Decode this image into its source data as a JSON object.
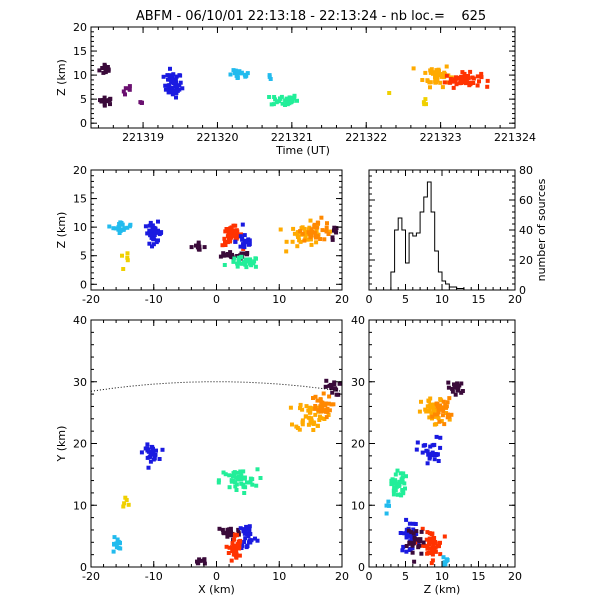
{
  "title": "ABFM - 06/10/01 22:13:18 - 22:13:24 - nb loc.=    625",
  "palette": {
    "dark": "#3a0a3a",
    "purple": "#6a1070",
    "blue": "#1a1ae0",
    "cyan": "#22bbee",
    "teal": "#22ee99",
    "yellow": "#f0d000",
    "orange_light": "#ffaa00",
    "orange": "#ff8800",
    "red": "#ff3300"
  },
  "chart_data": [
    {
      "id": "time-height",
      "type": "scatter",
      "xlabel": "Time (UT)",
      "ylabel": "Z (km)",
      "xlim": [
        221318.3,
        221324
      ],
      "ylim": [
        -1,
        20
      ],
      "xticks": [
        221319,
        221320,
        221321,
        221322,
        221323,
        221324
      ],
      "yticks": [
        0,
        5,
        10,
        15,
        20
      ],
      "clusters": [
        {
          "color": "dark",
          "cx": 221318.5,
          "cy": 11.3,
          "sx": 0.07,
          "sy": 1.0,
          "n": 14
        },
        {
          "color": "dark",
          "cx": 221318.5,
          "cy": 4.6,
          "sx": 0.08,
          "sy": 0.6,
          "n": 14
        },
        {
          "color": "purple",
          "cx": 221318.8,
          "cy": 6.8,
          "sx": 0.06,
          "sy": 1.0,
          "n": 6
        },
        {
          "color": "purple",
          "cx": 221319.0,
          "cy": 4.4,
          "sx": 0.03,
          "sy": 0.4,
          "n": 3
        },
        {
          "color": "blue",
          "cx": 221319.4,
          "cy": 8.0,
          "sx": 0.1,
          "sy": 2.2,
          "n": 45
        },
        {
          "color": "cyan",
          "cx": 221320.3,
          "cy": 10.0,
          "sx": 0.12,
          "sy": 0.8,
          "n": 18
        },
        {
          "color": "cyan",
          "cx": 221320.7,
          "cy": 9.5,
          "sx": 0.02,
          "sy": 0.6,
          "n": 3
        },
        {
          "color": "teal",
          "cx": 221320.9,
          "cy": 4.8,
          "sx": 0.15,
          "sy": 1.0,
          "n": 35
        },
        {
          "color": "yellow",
          "cx": 221322.3,
          "cy": 6.2,
          "sx": 0.02,
          "sy": 0.3,
          "n": 1
        },
        {
          "color": "yellow",
          "cx": 221322.8,
          "cy": 4.5,
          "sx": 0.04,
          "sy": 0.8,
          "n": 4
        },
        {
          "color": "orange_light",
          "cx": 221322.95,
          "cy": 10.0,
          "sx": 0.15,
          "sy": 2.0,
          "n": 45
        },
        {
          "color": "red",
          "cx": 221323.3,
          "cy": 9.0,
          "sx": 0.2,
          "sy": 1.2,
          "n": 55
        }
      ]
    },
    {
      "id": "x-height",
      "type": "scatter",
      "xlabel": "",
      "ylabel": "Z (km)",
      "xlim": [
        -20,
        20
      ],
      "ylim": [
        -1,
        20
      ],
      "xticks": [
        -20,
        -10,
        0,
        10,
        20
      ],
      "yticks": [
        0,
        5,
        10,
        15,
        20
      ],
      "clusters": [
        {
          "color": "cyan",
          "cx": -15.0,
          "cy": 10.0,
          "sx": 1.2,
          "sy": 0.8,
          "n": 18
        },
        {
          "color": "yellow",
          "cx": -14.5,
          "cy": 4.3,
          "sx": 0.6,
          "sy": 0.8,
          "n": 5
        },
        {
          "color": "blue",
          "cx": -10.0,
          "cy": 9.0,
          "sx": 1.2,
          "sy": 1.5,
          "n": 35
        },
        {
          "color": "dark",
          "cx": -3.0,
          "cy": 6.6,
          "sx": 1.0,
          "sy": 0.5,
          "n": 10
        },
        {
          "color": "red",
          "cx": 2.5,
          "cy": 8.5,
          "sx": 1.3,
          "sy": 1.5,
          "n": 40
        },
        {
          "color": "blue",
          "cx": 4.5,
          "cy": 7.5,
          "sx": 1.2,
          "sy": 1.5,
          "n": 20
        },
        {
          "color": "dark",
          "cx": 2.5,
          "cy": 5.0,
          "sx": 2.5,
          "sy": 0.5,
          "n": 25
        },
        {
          "color": "teal",
          "cx": 4.5,
          "cy": 3.8,
          "sx": 2.0,
          "sy": 0.8,
          "n": 35
        },
        {
          "color": "orange_light",
          "cx": 14.5,
          "cy": 8.5,
          "sx": 2.5,
          "sy": 1.8,
          "n": 40
        },
        {
          "color": "orange",
          "cx": 16.0,
          "cy": 9.5,
          "sx": 2.0,
          "sy": 1.5,
          "n": 30
        },
        {
          "color": "dark",
          "cx": 19.0,
          "cy": 9.0,
          "sx": 0.6,
          "sy": 1.0,
          "n": 8
        }
      ]
    },
    {
      "id": "histogram",
      "type": "bar",
      "xlabel": "",
      "ylabel": "number of sources",
      "xlim": [
        0,
        20
      ],
      "ylim": [
        0,
        80
      ],
      "xticks": [
        0,
        5,
        10,
        15,
        20
      ],
      "yticks": [
        0,
        20,
        40,
        60,
        80
      ],
      "bin_width": 0.5,
      "bins_start": 3,
      "counts": [
        12,
        40,
        48,
        40,
        18,
        38,
        36,
        38,
        52,
        62,
        72,
        52,
        26,
        12,
        6,
        4,
        2,
        2,
        1,
        1
      ]
    },
    {
      "id": "plan-view",
      "type": "scatter",
      "xlabel": "X (km)",
      "ylabel": "Y (km)",
      "xlim": [
        -20,
        20
      ],
      "ylim": [
        0,
        40
      ],
      "xticks": [
        -20,
        -10,
        0,
        10,
        20
      ],
      "yticks": [
        0,
        10,
        20,
        30,
        40
      ],
      "range_arc": {
        "cx": 0,
        "cy": -100,
        "r": 130,
        "x_from": -20,
        "x_to": 20
      },
      "clusters": [
        {
          "color": "blue",
          "cx": -10.5,
          "cy": 18.5,
          "sx": 1.0,
          "sy": 1.0,
          "n": 30
        },
        {
          "color": "cyan",
          "cx": -16.0,
          "cy": 3.5,
          "sx": 0.8,
          "sy": 1.5,
          "n": 12
        },
        {
          "color": "yellow",
          "cx": -14.5,
          "cy": 10.5,
          "sx": 0.5,
          "sy": 0.7,
          "n": 5
        },
        {
          "color": "teal",
          "cx": 3.5,
          "cy": 14.0,
          "sx": 2.5,
          "sy": 1.5,
          "n": 45
        },
        {
          "color": "dark",
          "cx": 2.0,
          "cy": 5.5,
          "sx": 1.5,
          "sy": 1.0,
          "n": 25
        },
        {
          "color": "blue",
          "cx": 5.0,
          "cy": 5.0,
          "sx": 1.2,
          "sy": 2.0,
          "n": 30
        },
        {
          "color": "red",
          "cx": 3.0,
          "cy": 3.0,
          "sx": 0.8,
          "sy": 2.0,
          "n": 40
        },
        {
          "color": "dark",
          "cx": -2.5,
          "cy": 1.0,
          "sx": 1.0,
          "sy": 0.5,
          "n": 8
        },
        {
          "color": "orange_light",
          "cx": 15.0,
          "cy": 24.5,
          "sx": 2.0,
          "sy": 2.0,
          "n": 45
        },
        {
          "color": "orange",
          "cx": 16.5,
          "cy": 26.0,
          "sx": 1.5,
          "sy": 1.5,
          "n": 30
        },
        {
          "color": "dark",
          "cx": 18.5,
          "cy": 29.0,
          "sx": 1.0,
          "sy": 1.0,
          "n": 15
        }
      ]
    },
    {
      "id": "z-y",
      "type": "scatter",
      "xlabel": "Z (km)",
      "ylabel": "",
      "xlim": [
        0,
        20
      ],
      "ylim": [
        0,
        40
      ],
      "xticks": [
        0,
        5,
        10,
        15,
        20
      ],
      "yticks": [
        0,
        10,
        20,
        30,
        40
      ],
      "clusters": [
        {
          "color": "teal",
          "cx": 4.0,
          "cy": 13.5,
          "sx": 0.8,
          "sy": 2.0,
          "n": 35
        },
        {
          "color": "cyan",
          "cx": 2.5,
          "cy": 10.0,
          "sx": 0.3,
          "sy": 1.0,
          "n": 4
        },
        {
          "color": "blue",
          "cx": 8.5,
          "cy": 18.5,
          "sx": 1.5,
          "sy": 2.0,
          "n": 30
        },
        {
          "color": "orange_light",
          "cx": 9.0,
          "cy": 25.0,
          "sx": 1.5,
          "sy": 2.0,
          "n": 45
        },
        {
          "color": "orange",
          "cx": 10.0,
          "cy": 25.5,
          "sx": 1.0,
          "sy": 1.5,
          "n": 25
        },
        {
          "color": "dark",
          "cx": 12.0,
          "cy": 29.0,
          "sx": 1.0,
          "sy": 1.2,
          "n": 15
        },
        {
          "color": "blue",
          "cx": 5.5,
          "cy": 5.0,
          "sx": 1.0,
          "sy": 2.0,
          "n": 30
        },
        {
          "color": "red",
          "cx": 8.5,
          "cy": 3.5,
          "sx": 1.2,
          "sy": 2.0,
          "n": 45
        },
        {
          "color": "dark",
          "cx": 6.5,
          "cy": 4.0,
          "sx": 1.0,
          "sy": 2.0,
          "n": 25
        },
        {
          "color": "cyan",
          "cx": 10.5,
          "cy": 1.0,
          "sx": 1.0,
          "sy": 0.8,
          "n": 8
        }
      ]
    }
  ]
}
